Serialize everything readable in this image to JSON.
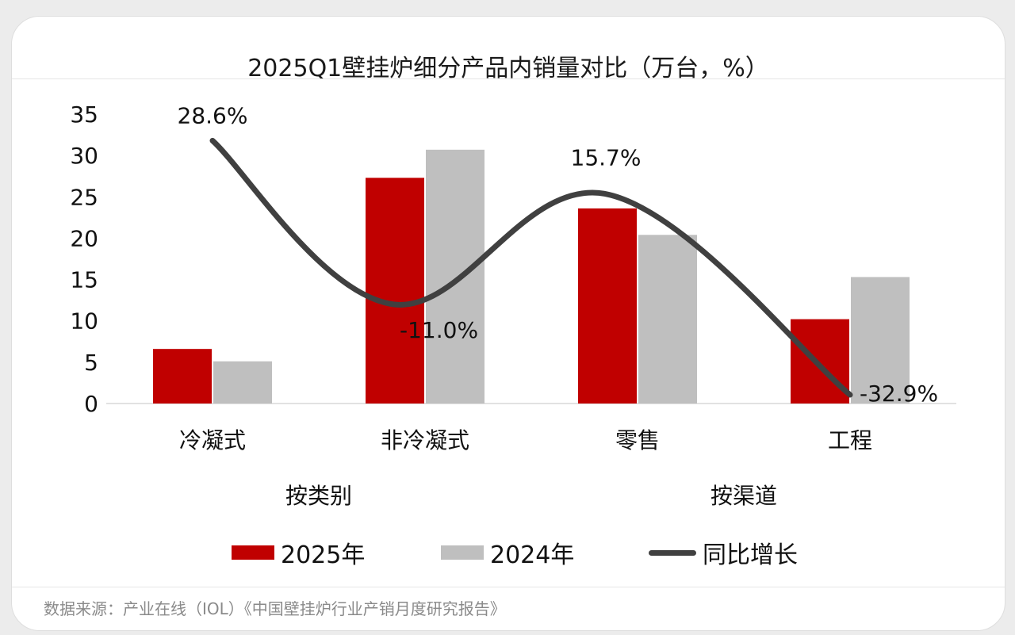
{
  "title": "2025Q1壁挂炉细分产品内销量对比（万台，%）",
  "source": "数据来源：产业在线（IOL）《中国壁挂炉行业产销月度研究报告》",
  "colors": {
    "y2025": "#c00000",
    "y2024": "#bfbfbf",
    "growth": "#404040"
  },
  "legend": {
    "y2025": "2025年",
    "y2024": "2024年",
    "growth": "同比增长"
  },
  "chart_data": {
    "type": "bar",
    "categories": [
      "冷凝式",
      "非冷凝式",
      "零售",
      "工程"
    ],
    "groups": [
      {
        "label": "按类别",
        "categories": [
          "冷凝式",
          "非冷凝式"
        ]
      },
      {
        "label": "按渠道",
        "categories": [
          "零售",
          "工程"
        ]
      }
    ],
    "series": [
      {
        "name": "2025年",
        "type": "bar",
        "values": [
          6.6,
          27.3,
          23.6,
          10.2
        ]
      },
      {
        "name": "2024年",
        "type": "bar",
        "values": [
          5.1,
          30.7,
          20.4,
          15.3
        ]
      },
      {
        "name": "同比增长",
        "type": "line",
        "values": [
          28.6,
          -11.0,
          15.7,
          -32.9
        ],
        "labels": [
          "28.6%",
          "-11.0%",
          "15.7%",
          "-32.9%"
        ]
      }
    ],
    "ylim": [
      0,
      35
    ],
    "yticks": [
      0,
      5,
      10,
      15,
      20,
      25,
      30,
      35
    ],
    "grid": false,
    "legend_position": "bottom"
  }
}
